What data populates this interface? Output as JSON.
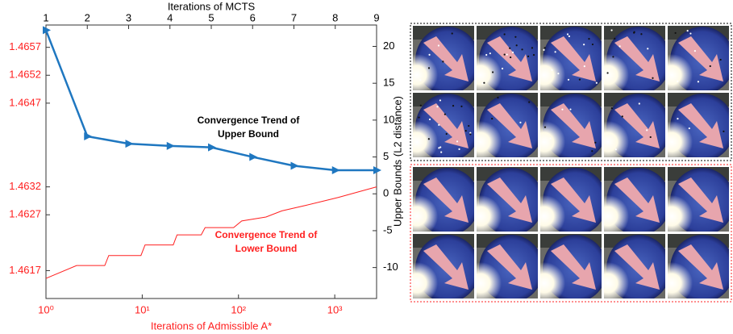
{
  "chart_data": {
    "type": "line",
    "x_label": "Iterations of Admissible A*",
    "x2_label": "Iterations of MCTS",
    "y2_label": "Upper Bounds (L2 distance)",
    "xscale": "log",
    "xlim": [
      1,
      2720
    ],
    "xticks": [
      {
        "value": 1,
        "label": "10⁰"
      },
      {
        "value": 10,
        "label": "10¹"
      },
      {
        "value": 100,
        "label": "10²"
      },
      {
        "value": 1000,
        "label": "10³"
      }
    ],
    "x2lim": [
      1,
      9
    ],
    "x2ticks": [
      1,
      2,
      3,
      4,
      5,
      6,
      7,
      8,
      9
    ],
    "ylim": [
      1.4612,
      1.4661
    ],
    "yticks": [
      1.4617,
      1.4627,
      1.4632,
      1.4647,
      1.4652,
      1.4657
    ],
    "y2lim": [
      -14.2,
      22.9
    ],
    "y2ticks": [
      -10,
      -5,
      0,
      5,
      10,
      15,
      20
    ],
    "series": [
      {
        "color": "#1f77c0",
        "axis": "y2",
        "xaxis": "x2",
        "marker": "triangle",
        "x": [
          1,
          2,
          3,
          4,
          5,
          6,
          7,
          8,
          9
        ],
        "values": [
          22.2,
          7.8,
          6.8,
          6.5,
          6.3,
          5.0,
          3.8,
          3.2,
          3.2
        ]
      },
      {
        "color": "#ff2020",
        "x": [
          1,
          2.08,
          4.08,
          4.49,
          9.7,
          10.7,
          21,
          23,
          41,
          45,
          89,
          108,
          193,
          282,
          503,
          740,
          1086,
          1594,
          2340,
          2720
        ],
        "values": [
          1.46156,
          1.46179,
          1.46179,
          1.46197,
          1.46197,
          1.46216,
          1.46216,
          1.46234,
          1.46234,
          1.46247,
          1.46247,
          1.46259,
          1.46266,
          1.46277,
          1.46287,
          1.46294,
          1.46301,
          1.46309,
          1.46317,
          1.4632
        ]
      }
    ],
    "annotations": [
      {
        "lines": [
          "Convergence Trend of",
          "Upper Bound"
        ],
        "color": "#000000"
      },
      {
        "lines": [
          "Convergence Trend of",
          "Lower Bound"
        ],
        "color": "#ff2020"
      }
    ]
  }
}
